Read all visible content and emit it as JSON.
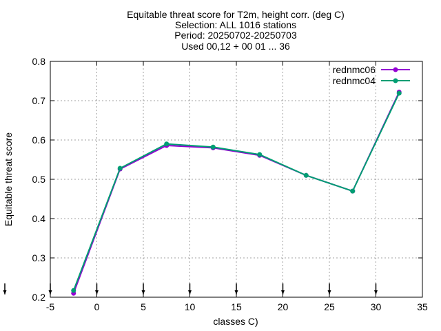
{
  "chart_data": {
    "type": "line",
    "title_lines": [
      "Equitable threat score  for T2m, height corr. (deg C)",
      "Selection: ALL   1016 stations",
      "Period: 20250702-20250703",
      "Used 00,12 + 00 01 ... 36"
    ],
    "xlabel": "classes C)",
    "ylabel": "Equitable threat score",
    "xlim": [
      -5,
      35
    ],
    "ylim": [
      0.2,
      0.8
    ],
    "xticks": [
      -5,
      0,
      5,
      10,
      15,
      20,
      25,
      30,
      35
    ],
    "xtick_labels": [
      "-5",
      "0",
      "5",
      "10",
      "15",
      "20",
      "25",
      "30",
      "35"
    ],
    "yticks": [
      0.2,
      0.3,
      0.4,
      0.5,
      0.6,
      0.7,
      0.8
    ],
    "ytick_labels": [
      "0.2",
      "0.3",
      "0.4",
      "0.5",
      "0.6",
      "0.7",
      "0.8"
    ],
    "grid": true,
    "legend_position": "top-right",
    "markers_below_axis_x": [
      -7.5,
      -5,
      0,
      5,
      10,
      15,
      20,
      25,
      30
    ],
    "series": [
      {
        "name": "rednmc06",
        "color": "#9400d3",
        "x": [
          -2.5,
          2.5,
          7.5,
          12.5,
          17.5,
          22.5,
          27.5,
          32.5
        ],
        "y": [
          0.21,
          0.526,
          0.586,
          0.58,
          0.561,
          0.51,
          0.47,
          0.722
        ]
      },
      {
        "name": "rednmc04",
        "color": "#009e73",
        "x": [
          -2.5,
          2.5,
          7.5,
          12.5,
          17.5,
          22.5,
          27.5,
          32.5
        ],
        "y": [
          0.217,
          0.528,
          0.59,
          0.582,
          0.563,
          0.51,
          0.47,
          0.719
        ]
      }
    ]
  }
}
